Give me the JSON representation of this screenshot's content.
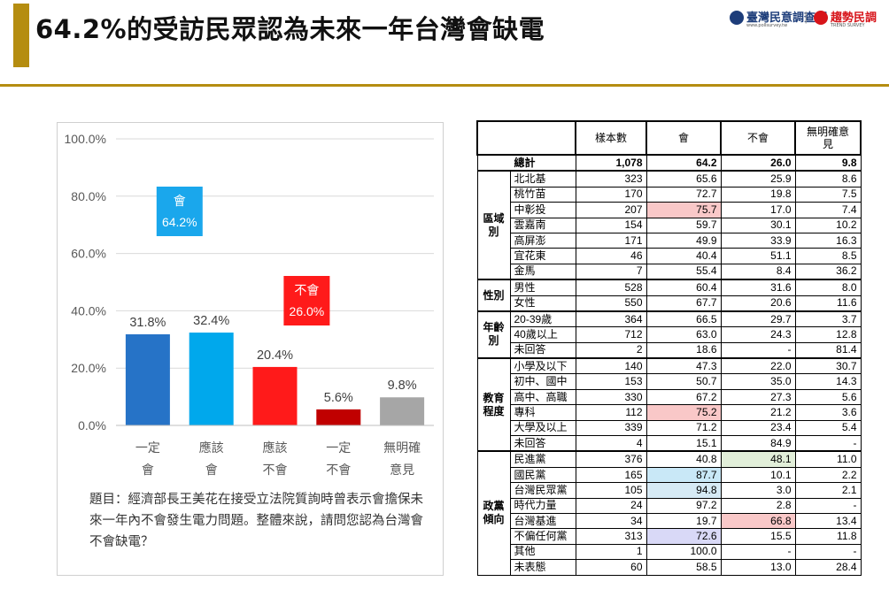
{
  "title": "64.2%的受訪民眾認為未來一年台灣會缺電",
  "logos": {
    "left": "臺灣民意調查網",
    "left_sub": "www.pollsurvey.tw",
    "separator": "|",
    "right": "趨勢民調",
    "right_sub": "TREND SURVEY"
  },
  "chart_data": {
    "type": "bar",
    "categories": [
      [
        "一定",
        "會"
      ],
      [
        "應該",
        "會"
      ],
      [
        "應該",
        "不會"
      ],
      [
        "一定",
        "不會"
      ],
      [
        "無明確",
        "意見"
      ]
    ],
    "values": [
      31.8,
      32.4,
      20.4,
      5.6,
      9.8
    ],
    "value_labels": [
      "31.8%",
      "32.4%",
      "20.4%",
      "5.6%",
      "9.8%"
    ],
    "bar_colors": [
      "#2673c7",
      "#00a8ec",
      "#ff1a1a",
      "#c00000",
      "#a6a6a6"
    ],
    "ylim": [
      0,
      100
    ],
    "yticks": [
      0,
      20,
      40,
      60,
      80,
      100
    ],
    "ytick_labels": [
      "0.0%",
      "20.0%",
      "40.0%",
      "60.0%",
      "80.0%",
      "100.0%"
    ],
    "grid": true,
    "annotations": [
      {
        "line1": "會",
        "line2": "64.2%",
        "color": "#1aa7ec",
        "value": 64.2,
        "bars": [
          0,
          1
        ]
      },
      {
        "line1": "不會",
        "line2": "26.0%",
        "color": "#ff1a1a",
        "value": 26.0,
        "bars": [
          2,
          3
        ]
      }
    ]
  },
  "question": "題目：經濟部長王美花在接受立法院質詢時曾表示會擔保未來一年內不會發生電力問題。整體來說，請問您認為台灣會不會缺電？",
  "table": {
    "headers": [
      "樣本數",
      "會",
      "不會",
      "無明確意見"
    ],
    "total": {
      "label": "總計",
      "values": [
        "1,078",
        "64.2",
        "26.0",
        "9.8"
      ]
    },
    "groups": [
      {
        "name": "區域別",
        "rows": [
          {
            "label": "北北基",
            "values": [
              "323",
              "65.6",
              "25.9",
              "8.6"
            ]
          },
          {
            "label": "桃竹苗",
            "values": [
              "170",
              "72.7",
              "19.8",
              "7.5"
            ]
          },
          {
            "label": "中彰投",
            "values": [
              "207",
              "75.7",
              "17.0",
              "7.4"
            ],
            "hl": [
              1,
              "#f9c8c8"
            ]
          },
          {
            "label": "雲嘉南",
            "values": [
              "154",
              "59.7",
              "30.1",
              "10.2"
            ]
          },
          {
            "label": "高屏澎",
            "values": [
              "171",
              "49.9",
              "33.9",
              "16.3"
            ]
          },
          {
            "label": "宜花東",
            "values": [
              "46",
              "40.4",
              "51.1",
              "8.5"
            ]
          },
          {
            "label": "金馬",
            "values": [
              "7",
              "55.4",
              "8.4",
              "36.2"
            ]
          }
        ]
      },
      {
        "name": "性別",
        "rows": [
          {
            "label": "男性",
            "values": [
              "528",
              "60.4",
              "31.6",
              "8.0"
            ]
          },
          {
            "label": "女性",
            "values": [
              "550",
              "67.7",
              "20.6",
              "11.6"
            ]
          }
        ]
      },
      {
        "name": "年齡別",
        "rows": [
          {
            "label": "20-39歲",
            "values": [
              "364",
              "66.5",
              "29.7",
              "3.7"
            ]
          },
          {
            "label": "40歲以上",
            "values": [
              "712",
              "63.0",
              "24.3",
              "12.8"
            ]
          },
          {
            "label": "未回答",
            "values": [
              "2",
              "18.6",
              "-",
              "81.4"
            ]
          }
        ]
      },
      {
        "name": "教育程度",
        "rows": [
          {
            "label": "小學及以下",
            "values": [
              "140",
              "47.3",
              "22.0",
              "30.7"
            ]
          },
          {
            "label": "初中、國中",
            "values": [
              "153",
              "50.7",
              "35.0",
              "14.3"
            ]
          },
          {
            "label": "高中、高職",
            "values": [
              "330",
              "67.2",
              "27.3",
              "5.6"
            ]
          },
          {
            "label": "專科",
            "values": [
              "112",
              "75.2",
              "21.2",
              "3.6"
            ],
            "hl": [
              1,
              "#f9c8c8"
            ]
          },
          {
            "label": "大學及以上",
            "values": [
              "339",
              "71.2",
              "23.4",
              "5.4"
            ]
          },
          {
            "label": "未回答",
            "values": [
              "4",
              "15.1",
              "84.9",
              "-"
            ]
          }
        ]
      },
      {
        "name": "政黨傾向",
        "rows": [
          {
            "label": "民進黨",
            "values": [
              "376",
              "40.8",
              "48.1",
              "11.0"
            ],
            "hl": [
              2,
              "#e2efd9"
            ]
          },
          {
            "label": "國民黨",
            "values": [
              "165",
              "87.7",
              "10.1",
              "2.2"
            ],
            "hl": [
              1,
              "#c9e8f7"
            ]
          },
          {
            "label": "台灣民眾黨",
            "values": [
              "105",
              "94.8",
              "3.0",
              "2.1"
            ],
            "hl": [
              1,
              "#d6eaf5"
            ]
          },
          {
            "label": "時代力量",
            "values": [
              "24",
              "97.2",
              "2.8",
              "-"
            ]
          },
          {
            "label": "台灣基進",
            "values": [
              "34",
              "19.7",
              "66.8",
              "13.4"
            ],
            "hl": [
              2,
              "#f9c8c8"
            ]
          },
          {
            "label": "不偏任何黨",
            "values": [
              "313",
              "72.6",
              "15.5",
              "11.8"
            ],
            "hl": [
              1,
              "#d9d9f7"
            ]
          },
          {
            "label": "其他",
            "values": [
              "1",
              "100.0",
              "-",
              "-"
            ]
          },
          {
            "label": "未表態",
            "values": [
              "60",
              "58.5",
              "13.0",
              "28.4"
            ]
          }
        ]
      }
    ]
  }
}
